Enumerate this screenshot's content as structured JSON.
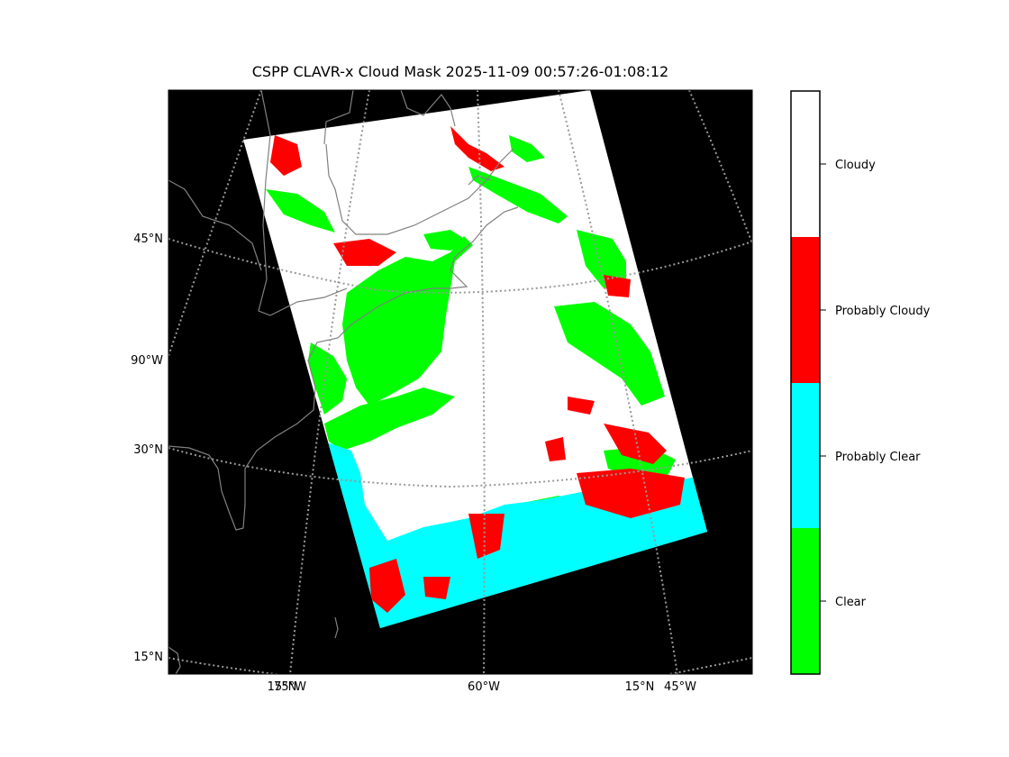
{
  "title": "CSPP CLAVR-x Cloud Mask 2025-11-09 00:57:26-01:08:12",
  "colors": {
    "background": "#000000",
    "cloudy": "#ffffff",
    "probably_cloudy": "#ff0000",
    "probably_clear": "#00ffff",
    "clear": "#00ff00",
    "coastline": "#808080",
    "graticule": "#999999"
  },
  "lat_labels": [
    "45°N",
    "90°W",
    "30°N",
    "15°N"
  ],
  "lon_labels": [
    "15°N",
    "75°W",
    "60°W",
    "15°N",
    "45°W"
  ],
  "legend": {
    "entries": [
      {
        "label": "Cloudy",
        "color": "#ffffff"
      },
      {
        "label": "Probably Cloudy",
        "color": "#ff0000"
      },
      {
        "label": "Probably Clear",
        "color": "#00ffff"
      },
      {
        "label": "Clear",
        "color": "#00ff00"
      }
    ]
  }
}
